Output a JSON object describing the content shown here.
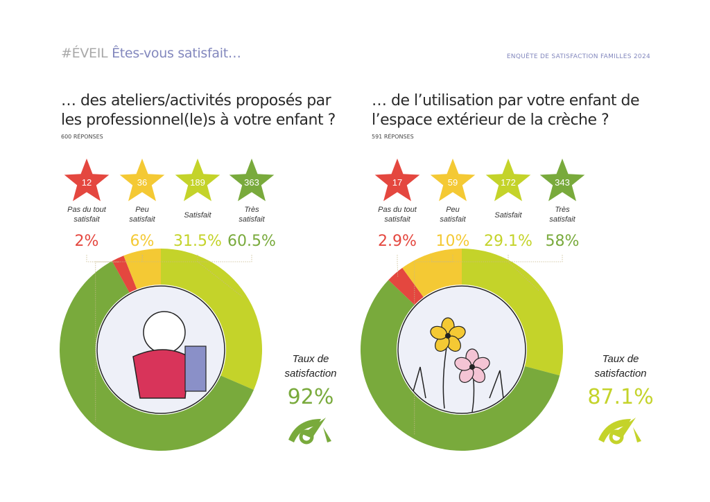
{
  "header": {
    "brand": "#ÉVEIL",
    "title": "Êtes-vous satisfait…",
    "survey": "ENQUÊTE DE SATISFACTION FAMILLES 2024"
  },
  "colors": {
    "pas_du_tout": "#e4473f",
    "peu": "#f4c934",
    "satisfait": "#c4d32a",
    "tres": "#79aa3c",
    "header_accent": "#8287bd"
  },
  "chart_data": [
    {
      "type": "pie",
      "donut": true,
      "title": "… des ateliers/activités proposés par les professionnel(le)s à votre enfant ?",
      "title_lines": [
        "… des ateliers/activités proposés par",
        "les professionnel(le)s à votre enfant ?"
      ],
      "responses": "600 RÉPONSES",
      "categories": [
        "Pas du tout satisfait",
        "Peu satisfait",
        "Satisfait",
        "Très satisfait"
      ],
      "label_lines": [
        [
          "Pas du tout",
          "satisfait"
        ],
        [
          "Peu",
          "satisfait"
        ],
        [
          "Satisfait"
        ],
        [
          "Très",
          "satisfait"
        ]
      ],
      "counts": [
        12,
        36,
        189,
        363
      ],
      "percent_labels": [
        "2%",
        "6%",
        "31.5%",
        "60.5%"
      ],
      "values": [
        2,
        6,
        31.5,
        60.5
      ],
      "taux_label": [
        "Taux de",
        "satisfaction"
      ],
      "taux_value": "92%",
      "taux_color": "#79aa3c",
      "illustration": "teddy-bear"
    },
    {
      "type": "pie",
      "donut": true,
      "title": "… de l’utilisation par votre enfant de l’espace extérieur de la crèche ?",
      "title_lines": [
        "… de l’utilisation par votre enfant de",
        "l’espace extérieur de la crèche ?"
      ],
      "responses": "591 RÉPONSES",
      "categories": [
        "Pas du tout satisfait",
        "Peu satisfait",
        "Satisfait",
        "Très satisfait"
      ],
      "label_lines": [
        [
          "Pas du tout",
          "satisfait"
        ],
        [
          "Peu",
          "satisfait"
        ],
        [
          "Satisfait"
        ],
        [
          "Très",
          "satisfait"
        ]
      ],
      "counts": [
        17,
        59,
        172,
        343
      ],
      "percent_labels": [
        "2.9%",
        "10%",
        "29.1%",
        "58%"
      ],
      "values": [
        2.9,
        10,
        29.1,
        58
      ],
      "taux_label": [
        "Taux de",
        "satisfaction"
      ],
      "taux_value": "87.1%",
      "taux_color": "#c4d32a",
      "illustration": "flowers"
    }
  ]
}
